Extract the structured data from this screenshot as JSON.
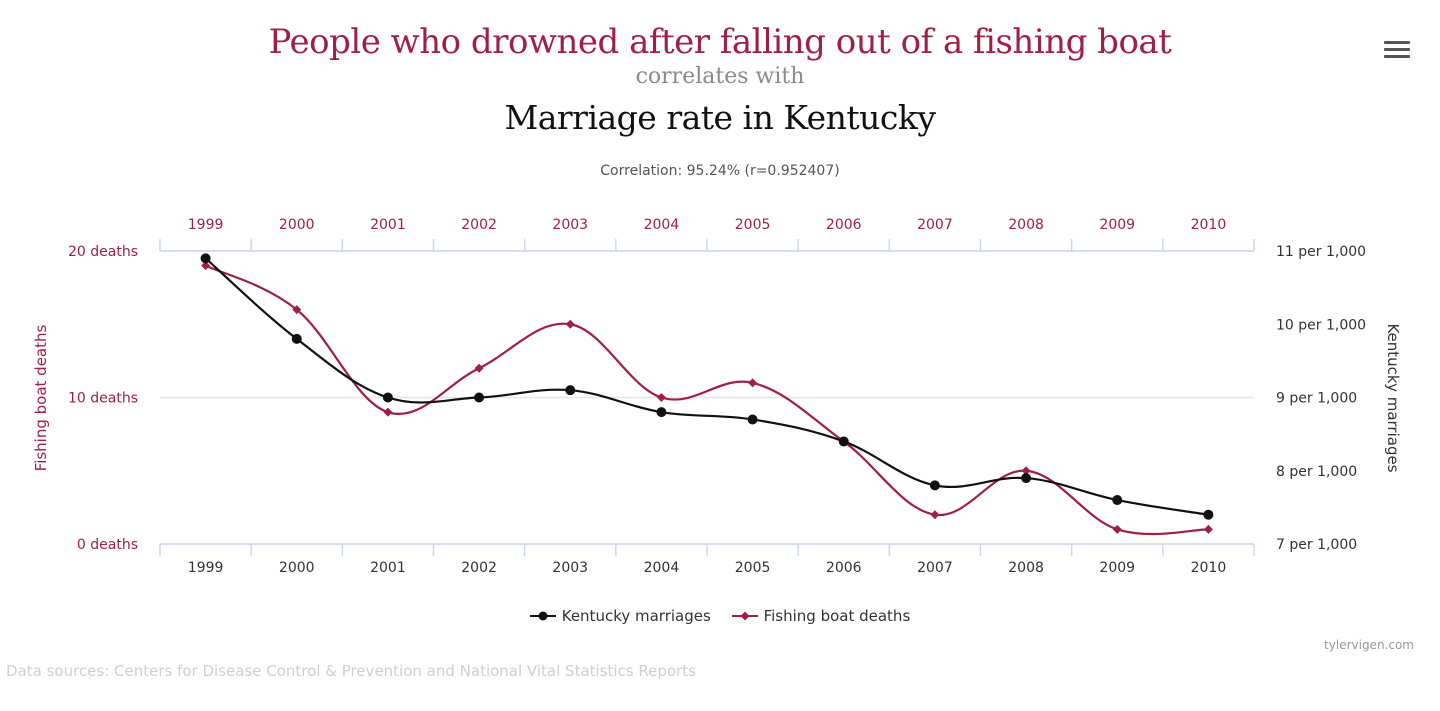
{
  "header": {
    "title_line1": "People who drowned after falling out of a fishing boat",
    "title_line2": "correlates with",
    "title_line3": "Marriage rate in Kentucky",
    "correlation": "Correlation: 95.24% (r=0.952407)",
    "menu_icon": "hamburger-menu-icon"
  },
  "colors": {
    "deaths": "#9f2042",
    "marriages": "#111111",
    "grid": "#e6e6e6",
    "axis": "#ccd6eb"
  },
  "chart_data": {
    "type": "line",
    "categories": [
      "1999",
      "2000",
      "2001",
      "2002",
      "2003",
      "2004",
      "2005",
      "2006",
      "2007",
      "2008",
      "2009",
      "2010"
    ],
    "series": [
      {
        "name": "Kentucky marriages",
        "axis": "right",
        "values": [
          10.9,
          9.8,
          9.0,
          9.0,
          9.1,
          8.8,
          8.7,
          8.4,
          7.8,
          7.9,
          7.6,
          7.4
        ]
      },
      {
        "name": "Fishing boat deaths",
        "axis": "left",
        "values": [
          19,
          16,
          9,
          12,
          15,
          10,
          11,
          7,
          2,
          5,
          1,
          1
        ]
      }
    ],
    "left_axis": {
      "title": "Fishing boat deaths",
      "ylim": [
        0,
        20
      ],
      "ticks": [
        {
          "value": 20,
          "label": "20 deaths"
        },
        {
          "value": 10,
          "label": "10 deaths"
        },
        {
          "value": 0,
          "label": "0 deaths"
        }
      ]
    },
    "right_axis": {
      "title": "Kentucky marriages",
      "ylim": [
        7,
        11
      ],
      "ticks": [
        {
          "value": 11,
          "label": "11 per 1,000"
        },
        {
          "value": 10,
          "label": "10 per 1,000"
        },
        {
          "value": 9,
          "label": "9 per 1,000"
        },
        {
          "value": 8,
          "label": "8 per 1,000"
        },
        {
          "value": 7,
          "label": "7 per 1,000"
        }
      ]
    },
    "grid": true,
    "legend_position": "bottom-center"
  },
  "legend": {
    "items": [
      "Kentucky marriages",
      "Fishing boat deaths"
    ]
  },
  "footer": {
    "credit": "tylervigen.com",
    "sources": "Data sources: Centers for Disease Control & Prevention and National Vital Statistics Reports"
  }
}
